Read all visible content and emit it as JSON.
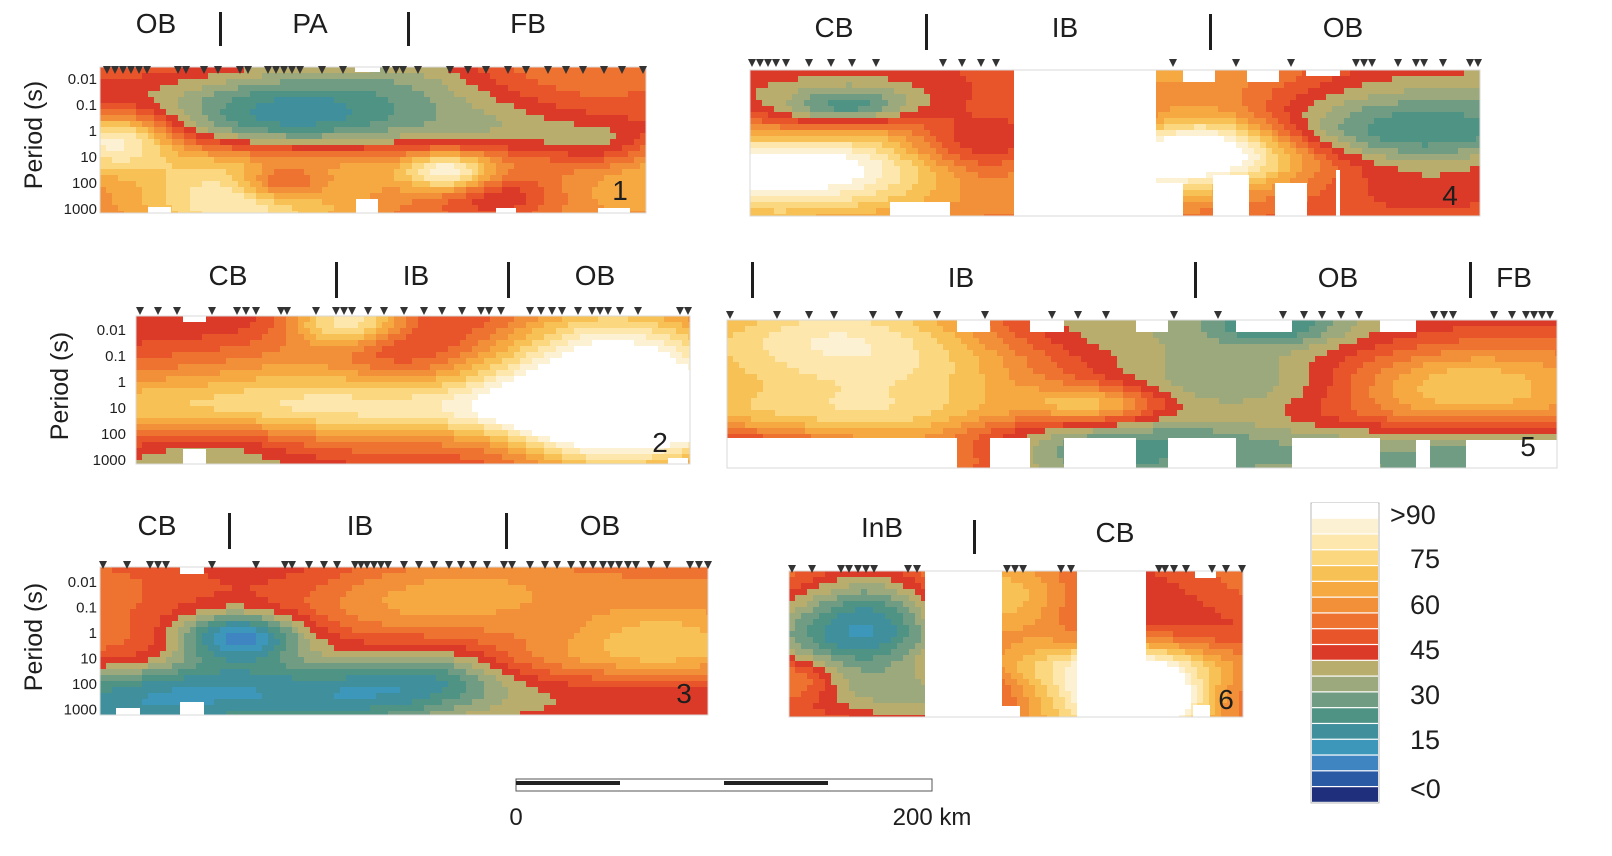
{
  "chart_data": {
    "type": "heatmap",
    "ylabel": "Period (s)",
    "y_ticks": [
      "0.01",
      "0.1",
      "1",
      "10",
      "100",
      "1000"
    ],
    "y_scale": "log",
    "colorbar": {
      "tick_labels": [
        ">90",
        "75",
        "60",
        "45",
        "30",
        "15",
        "<0"
      ],
      "range": [
        0,
        90
      ],
      "colors": [
        "#ffffff",
        "#fdf1d4",
        "#fde7ac",
        "#fbd780",
        "#f8c155",
        "#f6a941",
        "#f28f39",
        "#ee7331",
        "#e8552b",
        "#dc3a28",
        "#b8ad6c",
        "#9ca97c",
        "#6f9c82",
        "#4f9384",
        "#3f8f9c",
        "#3d97ba",
        "#3e85c2",
        "#2b5aa5",
        "#1f2f7c"
      ]
    },
    "scale_bar": {
      "labels": [
        "0",
        "200 km"
      ]
    },
    "panels": [
      {
        "id": "1",
        "number_label": "1",
        "regions": [
          "OB",
          "PA",
          "FB"
        ],
        "y_axis_shown": true
      },
      {
        "id": "4",
        "number_label": "4",
        "regions": [
          "CB",
          "IB",
          "OB"
        ],
        "y_axis_shown": false
      },
      {
        "id": "2",
        "number_label": "2",
        "regions": [
          "CB",
          "IB",
          "OB"
        ],
        "y_axis_shown": true
      },
      {
        "id": "5",
        "number_label": "5",
        "regions": [
          "IB",
          "OB",
          "FB"
        ],
        "y_axis_shown": false
      },
      {
        "id": "3",
        "number_label": "3",
        "regions": [
          "CB",
          "IB",
          "OB"
        ],
        "y_axis_shown": true
      },
      {
        "id": "6",
        "number_label": "6",
        "regions": [
          "InB",
          "CB"
        ],
        "y_axis_shown": false
      }
    ]
  }
}
